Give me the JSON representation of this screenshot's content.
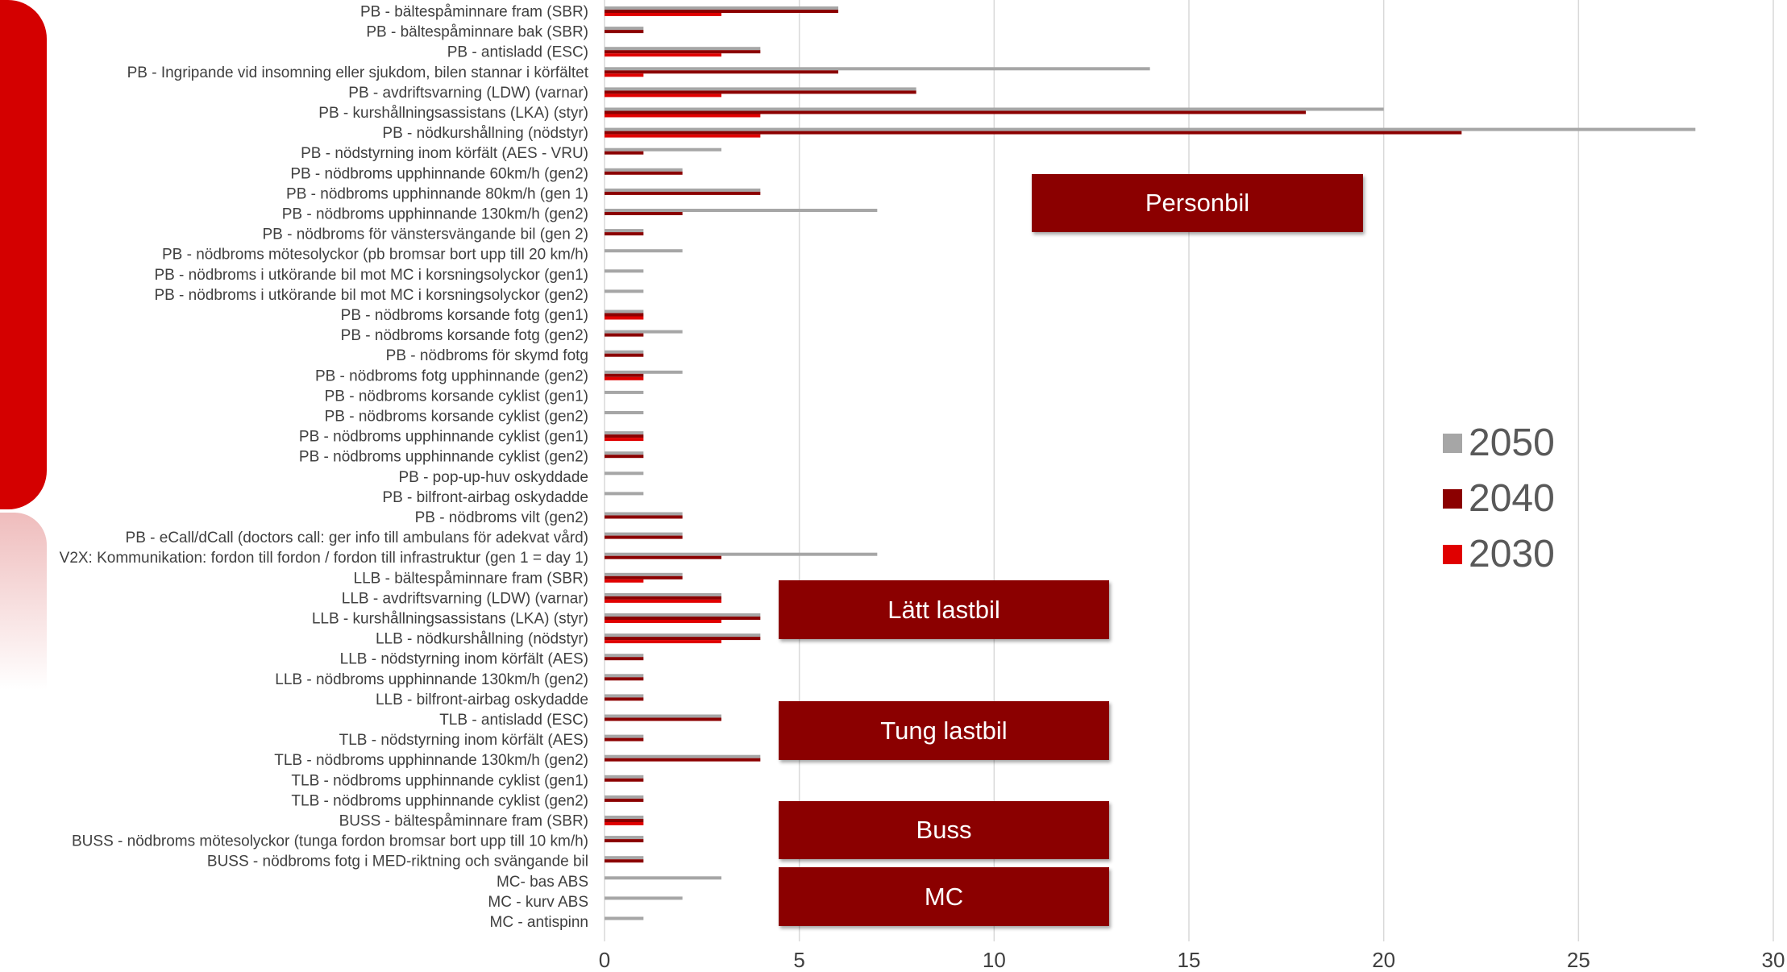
{
  "colors": {
    "y2050": "#a6a6a6",
    "y2040": "#8b0000",
    "y2030": "#e00000",
    "grid": "#d9d9d9",
    "box": "#8b0000"
  },
  "chart_data": {
    "type": "bar",
    "orientation": "horizontal",
    "categories": [
      "PB - bältespåminnare fram (SBR)",
      "PB - bältespåminnare bak (SBR)",
      "PB - antisladd (ESC)",
      "PB - Ingripande vid insomning eller sjukdom, bilen stannar i körfältet",
      "PB - avdriftsvarning (LDW) (varnar)",
      "PB - kurshållningsassistans (LKA) (styr)",
      "PB - nödkurshållning (nödstyr)",
      "PB - nödstyrning inom körfält (AES - VRU)",
      "PB - nödbroms upphinnande 60km/h (gen2)",
      "PB - nödbroms upphinnande 80km/h (gen 1)",
      "PB - nödbroms upphinnande 130km/h (gen2)",
      "PB - nödbroms för vänstersvängande bil (gen 2)",
      "PB - nödbroms mötesolyckor (pb bromsar bort upp till 20 km/h)",
      "PB - nödbroms i utkörande bil mot MC i korsningsolyckor (gen1)",
      "PB - nödbroms i utkörande bil mot MC i korsningsolyckor (gen2)",
      "PB - nödbroms korsande fotg (gen1)",
      "PB - nödbroms korsande fotg (gen2)",
      "PB - nödbroms för skymd fotg",
      "PB - nödbroms fotg upphinnande (gen2)",
      "PB - nödbroms korsande cyklist (gen1)",
      "PB - nödbroms korsande cyklist (gen2)",
      "PB - nödbroms upphinnande cyklist (gen1)",
      "PB - nödbroms upphinnande cyklist (gen2)",
      "PB - pop-up-huv oskyddade",
      "PB - bilfront-airbag oskydadde",
      "PB - nödbroms vilt (gen2)",
      "PB - eCall/dCall (doctors call: ger info till ambulans för adekvat vård)",
      "V2X: Kommunikation: fordon till fordon / fordon till infrastruktur (gen 1 = day 1)",
      "LLB - bältespåminnare fram (SBR)",
      "LLB - avdriftsvarning (LDW) (varnar)",
      "LLB - kurshållningsassistans (LKA) (styr)",
      "LLB - nödkurshållning (nödstyr)",
      "LLB - nödstyrning inom körfält (AES)",
      "LLB - nödbroms upphinnande 130km/h (gen2)",
      "LLB - bilfront-airbag oskydadde",
      "TLB - antisladd (ESC)",
      "TLB - nödstyrning inom körfält (AES)",
      "TLB - nödbroms upphinnande 130km/h (gen2)",
      "TLB - nödbroms upphinnande cyklist (gen1)",
      "TLB - nödbroms upphinnande cyklist (gen2)",
      "BUSS - bältespåminnare fram (SBR)",
      "BUSS - nödbroms mötesolyckor (tunga fordon bromsar bort upp till 10 km/h)",
      "BUSS - nödbroms fotg i MED-riktning och svängande bil",
      "MC- bas ABS",
      "MC - kurv ABS",
      "MC - antispinn"
    ],
    "series": [
      {
        "name": "2050",
        "values": [
          6,
          1,
          4,
          14,
          8,
          20,
          28,
          3,
          2,
          4,
          7,
          1,
          2,
          1,
          1,
          1,
          2,
          1,
          2,
          1,
          1,
          1,
          1,
          1,
          1,
          2,
          2,
          7,
          2,
          3,
          4,
          4,
          1,
          1,
          1,
          3,
          1,
          4,
          1,
          1,
          1,
          1,
          1,
          3,
          2,
          1
        ]
      },
      {
        "name": "2040",
        "values": [
          6,
          1,
          4,
          6,
          8,
          18,
          22,
          1,
          2,
          4,
          2,
          1,
          0,
          0,
          0,
          1,
          1,
          1,
          1,
          0,
          0,
          1,
          1,
          0,
          0,
          2,
          2,
          3,
          2,
          3,
          4,
          4,
          1,
          1,
          1,
          3,
          1,
          4,
          1,
          1,
          1,
          1,
          1,
          0,
          0,
          0
        ]
      },
      {
        "name": "2030",
        "values": [
          3,
          0,
          3,
          1,
          3,
          4,
          4,
          0,
          0,
          0,
          0,
          0,
          0,
          0,
          0,
          1,
          0,
          0,
          1,
          0,
          0,
          1,
          0,
          0,
          0,
          0,
          0,
          0,
          1,
          3,
          3,
          3,
          0,
          0,
          0,
          0,
          0,
          0,
          0,
          0,
          1,
          0,
          0,
          0,
          0,
          0
        ]
      }
    ],
    "xlim": [
      0,
      30
    ],
    "xticks": [
      "0",
      "5",
      "10",
      "15",
      "20",
      "25",
      "30"
    ],
    "grid": "vertical",
    "legend": "right",
    "group_labels": [
      "Personbil",
      "Lätt lastbil",
      "Tung lastbil",
      "Buss",
      "MC"
    ]
  }
}
